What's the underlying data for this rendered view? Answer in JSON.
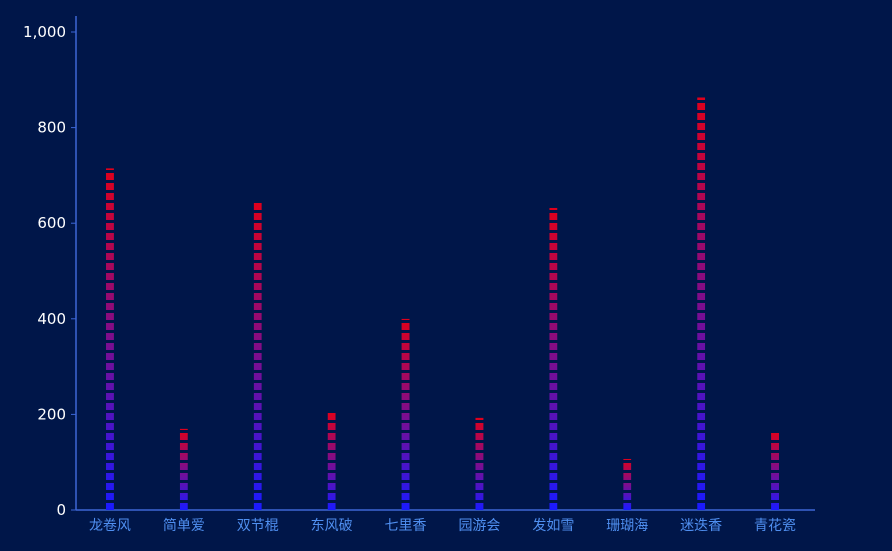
{
  "chart_data": {
    "type": "bar",
    "title": "",
    "xlabel": "",
    "ylabel": "",
    "categories": [
      "龙卷风",
      "简单爱",
      "双节棍",
      "东风破",
      "七里香",
      "园游会",
      "发如雪",
      "珊瑚海",
      "迷迭香",
      "青花瓷"
    ],
    "values": [
      715,
      170,
      645,
      205,
      400,
      193,
      632,
      107,
      863,
      165
    ],
    "ylim": [
      0,
      1000
    ],
    "yticks": [
      0,
      200,
      400,
      600,
      800,
      1000
    ],
    "ytick_labels": [
      "0",
      "200",
      "400",
      "600",
      "800",
      "1,000"
    ],
    "grid": false,
    "bar_style": "segmented",
    "gradient": {
      "top": "#e0001b",
      "bottom": "#1a1aff"
    },
    "axis_color": "#3d66d6"
  }
}
